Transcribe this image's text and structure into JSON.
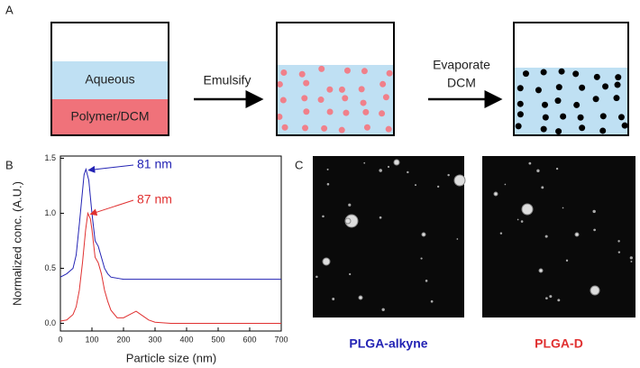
{
  "panel_labels": {
    "a": "A",
    "b": "B",
    "c": "C"
  },
  "diagram": {
    "aqueous": "Aqueous",
    "polymer": "Polymer/DCM",
    "step1": "Emulsify",
    "step2_line1": "Evaporate",
    "step2_line2": "DCM"
  },
  "chart_data": {
    "type": "line",
    "x_label": "Particle size (nm)",
    "y_label": "Normalized conc. (A.U.)",
    "xlim": [
      0,
      700
    ],
    "xticks": [
      0,
      100,
      200,
      300,
      400,
      500,
      600,
      700
    ],
    "ylim": [
      -0.07,
      1.52
    ],
    "yticks": [
      {
        "value": 0,
        "label": "0.0"
      },
      0.5,
      {
        "value": 1,
        "label": "1.0"
      },
      1.5
    ],
    "series": [
      {
        "name": "PLGA-alkyne",
        "color": "#2323b4",
        "x": [
          0,
          20,
          40,
          50,
          60,
          70,
          75,
          81,
          90,
          100,
          110,
          120,
          130,
          140,
          150,
          160,
          180,
          200,
          250,
          300,
          400,
          500,
          600,
          700
        ],
        "values": [
          0.42,
          0.45,
          0.5,
          0.62,
          0.9,
          1.2,
          1.35,
          1.4,
          1.3,
          1.0,
          0.75,
          0.7,
          0.6,
          0.5,
          0.45,
          0.42,
          0.41,
          0.4,
          0.4,
          0.4,
          0.4,
          0.4,
          0.4,
          0.4
        ]
      },
      {
        "name": "PLGA-D",
        "color": "#e03030",
        "x": [
          0,
          20,
          40,
          50,
          60,
          70,
          80,
          87,
          95,
          100,
          110,
          120,
          130,
          140,
          150,
          160,
          180,
          200,
          220,
          240,
          260,
          280,
          300,
          350,
          400,
          500,
          600,
          700
        ],
        "values": [
          0.02,
          0.03,
          0.08,
          0.15,
          0.3,
          0.55,
          0.85,
          1.0,
          0.95,
          0.85,
          0.6,
          0.55,
          0.45,
          0.3,
          0.2,
          0.12,
          0.05,
          0.05,
          0.08,
          0.11,
          0.07,
          0.03,
          0.01,
          0,
          0,
          0,
          0,
          0
        ]
      }
    ],
    "annotations": [
      {
        "text": "81 nm",
        "x": 81,
        "y": 1.4
      },
      {
        "text": "87 nm",
        "x": 87,
        "y": 1.0
      }
    ]
  },
  "images": {
    "left_caption": "PLGA-alkyne",
    "right_caption": "PLGA-D"
  }
}
